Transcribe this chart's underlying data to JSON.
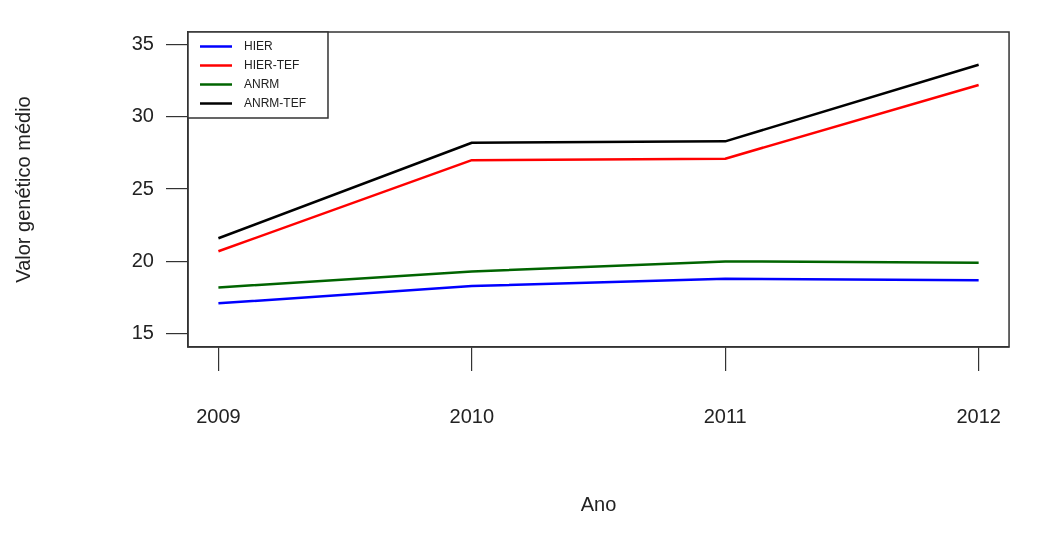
{
  "chart_data": {
    "type": "line",
    "xlabel": "Ano",
    "ylabel": "Valor genético médio",
    "x": [
      2009,
      2010,
      2011,
      2012
    ],
    "xlim": [
      2008.88,
      2012.12
    ],
    "xticks": [
      2009,
      2010,
      2011,
      2012
    ],
    "ylim": [
      14.08,
      35.86
    ],
    "yticks": [
      15,
      20,
      25,
      30,
      35
    ],
    "legend": "top left",
    "grid": false,
    "marker": "none",
    "line_style": "solid",
    "series": [
      {
        "name": "HIER",
        "color": "#0000ff",
        "values": [
          17.1,
          18.3,
          18.8,
          18.7
        ]
      },
      {
        "name": "HIER-TEF",
        "color": "#ff0000",
        "values": [
          20.7,
          27.0,
          27.1,
          32.2
        ]
      },
      {
        "name": "ANRM",
        "color": "#006400",
        "values": [
          18.2,
          19.3,
          20.0,
          19.9
        ]
      },
      {
        "name": "ANRM-TEF",
        "color": "#000000",
        "values": [
          21.6,
          28.2,
          28.3,
          33.6
        ]
      }
    ]
  }
}
